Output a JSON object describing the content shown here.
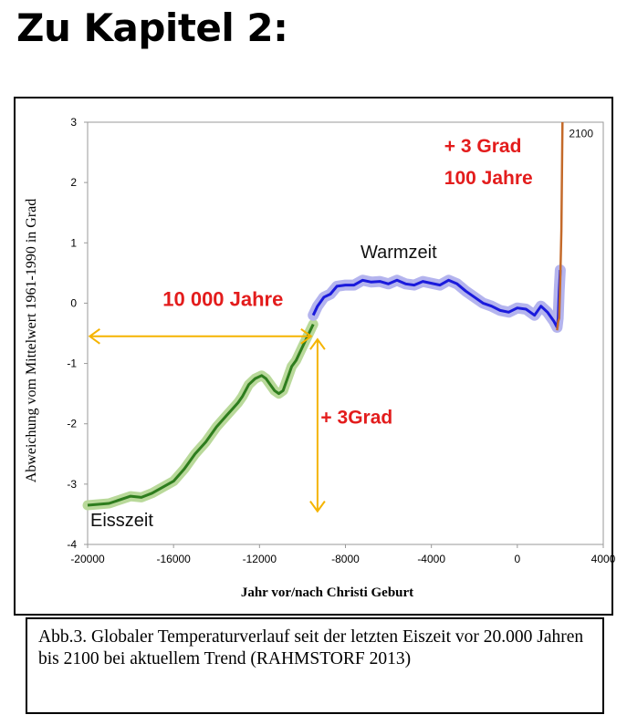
{
  "page": {
    "heading": "Zu Kapitel 2:",
    "caption": "Abb.3. Globaler Temperaturverlauf seit der letzten Eiszeit vor 20.000 Jahren bis 2100 bei aktuellem Trend  (RAHMSTORF 2013)"
  },
  "colors": {
    "ice_age_series": "#2e7d1e",
    "ice_age_band": "#b9d99a",
    "holocene_series": "#1a1adc",
    "holocene_band": "#b4b4ee",
    "projection": "#c46a2a",
    "annotation_red": "#e31c1c",
    "arrow": "#f5b400"
  },
  "chart_data": {
    "type": "line",
    "xlabel": "Jahr vor/nach Christi Geburt",
    "ylabel": "Abweichung vom Mittelwert 1961-1990  in Grad",
    "xlim": [
      -20000,
      4000
    ],
    "ylim": [
      -4,
      3
    ],
    "xticks": [
      -20000,
      -16000,
      -12000,
      -8000,
      -4000,
      0,
      4000
    ],
    "yticks": [
      3,
      2,
      1,
      0,
      -1,
      -2,
      -3,
      -4
    ],
    "grid": false,
    "series": [
      {
        "x": [
          -20000,
          -19000,
          -18000,
          -17500,
          -17000,
          -16500,
          -16000,
          -15500,
          -15000,
          -14500,
          -14000,
          -13500,
          -13000,
          -12800,
          -12500,
          -12200,
          -11900,
          -11700,
          -11500,
          -11300,
          -11100,
          -10900,
          -10700,
          -10500,
          -10300,
          -10100,
          -9900,
          -9700,
          -9500
        ],
        "y": [
          -3.35,
          -3.32,
          -3.2,
          -3.22,
          -3.15,
          -3.05,
          -2.95,
          -2.75,
          -2.5,
          -2.3,
          -2.05,
          -1.85,
          -1.65,
          -1.55,
          -1.35,
          -1.25,
          -1.2,
          -1.25,
          -1.35,
          -1.45,
          -1.5,
          -1.45,
          -1.25,
          -1.05,
          -0.95,
          -0.8,
          -0.65,
          -0.5,
          -0.35
        ]
      },
      {
        "x": [
          -9500,
          -9300,
          -9000,
          -8700,
          -8400,
          -8000,
          -7600,
          -7200,
          -6800,
          -6400,
          -6000,
          -5600,
          -5200,
          -4800,
          -4400,
          -4000,
          -3600,
          -3200,
          -2800,
          -2400,
          -2000,
          -1600,
          -1200,
          -800,
          -400,
          0,
          400,
          800,
          1100,
          1400,
          1700,
          1850,
          1900,
          1950,
          2000
        ],
        "y": [
          -0.2,
          -0.05,
          0.1,
          0.15,
          0.28,
          0.3,
          0.3,
          0.38,
          0.35,
          0.36,
          0.32,
          0.38,
          0.32,
          0.3,
          0.36,
          0.33,
          0.3,
          0.38,
          0.32,
          0.2,
          0.1,
          0.0,
          -0.05,
          -0.12,
          -0.15,
          -0.08,
          -0.1,
          -0.2,
          -0.05,
          -0.15,
          -0.3,
          -0.4,
          -0.25,
          0.2,
          0.55
        ]
      },
      {
        "x": [
          1850,
          1900,
          1950,
          2000,
          2050,
          2100
        ],
        "y": [
          -0.45,
          -0.3,
          -0.25,
          0.4,
          1.2,
          3.0
        ]
      }
    ],
    "annotations": {
      "ice_age": "Eisszeit",
      "warm_period": "Warmzeit",
      "span": "10 000 Jahre",
      "rise": "+ 3Grad",
      "projection_line1": "+ 3 Grad",
      "projection_line2": "100 Jahre",
      "year_2100": "2100"
    }
  }
}
